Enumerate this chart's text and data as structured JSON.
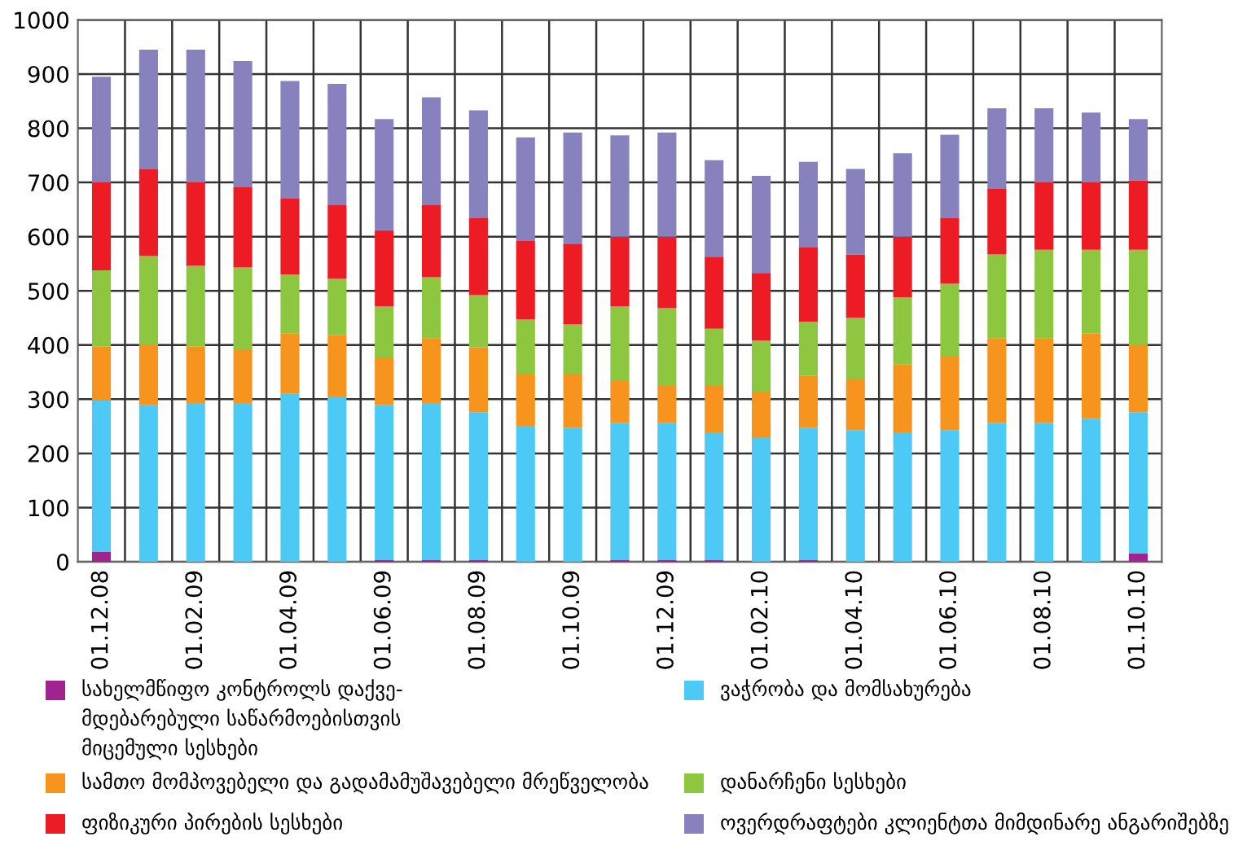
{
  "chart_data": {
    "type": "bar",
    "stacked": true,
    "categories": [
      "01.12.08",
      null,
      "01.02.09",
      null,
      "01.04.09",
      null,
      "01.06.09",
      null,
      "01.08.09",
      null,
      "01.10.09",
      null,
      "01.12.09",
      null,
      "01.02.10",
      null,
      "01.04.10",
      null,
      "01.06.10",
      null,
      "01.08.10",
      null,
      "01.10.10"
    ],
    "series": [
      {
        "name": "სახელმწიფო კონტროლს დაქვე-\nმდებარებული საწარმოებისთვის\nმიცემული სესხები",
        "color": "#a0238f",
        "values": [
          18,
          0,
          0,
          0,
          0,
          0,
          3,
          3,
          3,
          0,
          0,
          3,
          3,
          3,
          0,
          3,
          0,
          0,
          0,
          0,
          0,
          0,
          15
        ]
      },
      {
        "name": "ვაჭრობა და მომსახურება",
        "color": "#4dc9f6",
        "values": [
          280,
          289,
          293,
          293,
          310,
          305,
          286,
          290,
          273,
          251,
          247,
          253,
          253,
          236,
          230,
          244,
          243,
          239,
          243,
          256,
          256,
          264,
          261
        ]
      },
      {
        "name": "სამთო მომპოვებელი და გადამამუშავებელი მრეწველობა",
        "color": "#f7941d",
        "values": [
          99,
          112,
          104,
          99,
          111,
          113,
          88,
          120,
          120,
          96,
          100,
          79,
          70,
          87,
          84,
          96,
          95,
          125,
          137,
          157,
          157,
          157,
          125
        ]
      },
      {
        "name": "დანარჩენი სესხები",
        "color": "#8dc63f",
        "values": [
          141,
          163,
          149,
          151,
          109,
          104,
          94,
          112,
          96,
          100,
          91,
          136,
          142,
          104,
          94,
          100,
          112,
          124,
          133,
          154,
          163,
          155,
          175
        ]
      },
      {
        "name": "ფიზიკური პირების სესხები",
        "color": "#ed1c24",
        "values": [
          162,
          160,
          154,
          148,
          140,
          136,
          141,
          133,
          142,
          145,
          149,
          129,
          132,
          133,
          125,
          137,
          117,
          112,
          121,
          121,
          124,
          124,
          128
        ]
      },
      {
        "name": "ოვერდრაფტები კლიენტთა მიმდინარე ანგარიშებზე",
        "color": "#8781bd",
        "values": [
          195,
          221,
          245,
          233,
          217,
          224,
          205,
          199,
          199,
          191,
          205,
          187,
          192,
          178,
          179,
          158,
          158,
          154,
          154,
          149,
          137,
          129,
          113
        ]
      }
    ],
    "ylim": [
      0,
      1000
    ],
    "yticks": [
      0,
      100,
      200,
      300,
      400,
      500,
      600,
      700,
      800,
      900,
      1000
    ],
    "grid": true,
    "legend": "bottom"
  }
}
